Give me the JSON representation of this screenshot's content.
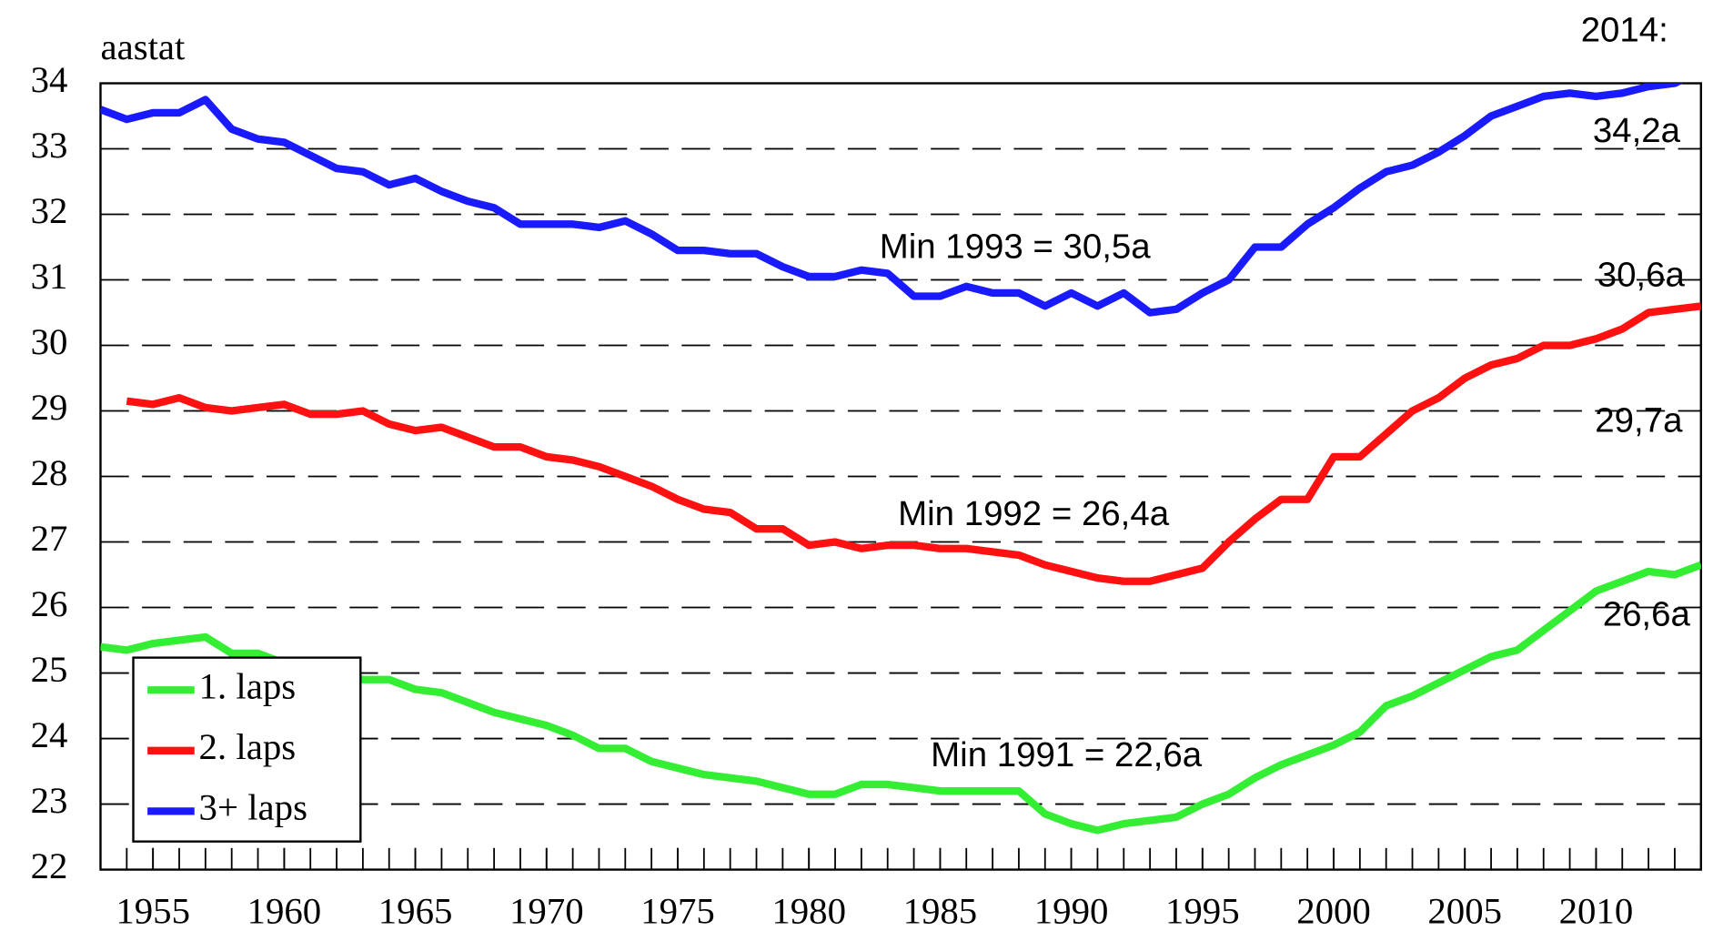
{
  "chart_data": {
    "type": "line",
    "y_label": "aastat",
    "x": [
      1953,
      1954,
      1955,
      1956,
      1957,
      1958,
      1959,
      1960,
      1961,
      1962,
      1963,
      1964,
      1965,
      1966,
      1967,
      1968,
      1969,
      1970,
      1971,
      1972,
      1973,
      1974,
      1975,
      1976,
      1977,
      1978,
      1979,
      1980,
      1981,
      1982,
      1983,
      1984,
      1985,
      1986,
      1987,
      1988,
      1989,
      1990,
      1991,
      1992,
      1993,
      1994,
      1995,
      1996,
      1997,
      1998,
      1999,
      2000,
      2001,
      2002,
      2003,
      2004,
      2005,
      2006,
      2007,
      2008,
      2009,
      2010,
      2011,
      2012,
      2013,
      2014
    ],
    "series": [
      {
        "name": "1. laps",
        "color": "#33ee33",
        "values": [
          25.4,
          25.35,
          25.45,
          25.5,
          25.55,
          25.3,
          25.3,
          25.15,
          25.1,
          25.0,
          24.9,
          24.9,
          24.75,
          24.7,
          24.55,
          24.4,
          24.3,
          24.2,
          24.05,
          23.85,
          23.85,
          23.65,
          23.55,
          23.45,
          23.4,
          23.35,
          23.25,
          23.15,
          23.15,
          23.3,
          23.3,
          23.25,
          23.2,
          23.2,
          23.2,
          23.2,
          22.85,
          22.7,
          22.6,
          22.7,
          22.75,
          22.8,
          23.0,
          23.15,
          23.4,
          23.6,
          23.75,
          23.9,
          24.1,
          24.5,
          24.65,
          24.85,
          25.05,
          25.25,
          25.35,
          25.65,
          25.95,
          26.25,
          26.4,
          26.55,
          26.5,
          26.65
        ]
      },
      {
        "name": "2. laps",
        "color": "#ff1111",
        "values": [
          null,
          29.15,
          29.1,
          29.2,
          29.05,
          29.0,
          29.05,
          29.1,
          28.95,
          28.95,
          29.0,
          28.8,
          28.7,
          28.75,
          28.6,
          28.45,
          28.45,
          28.3,
          28.25,
          28.15,
          28.0,
          27.85,
          27.65,
          27.5,
          27.45,
          27.2,
          27.2,
          26.95,
          27.0,
          26.9,
          26.95,
          26.95,
          26.9,
          26.9,
          26.85,
          26.8,
          26.65,
          26.55,
          26.45,
          26.4,
          26.4,
          26.5,
          26.6,
          27.0,
          27.35,
          27.65,
          27.65,
          28.3,
          28.3,
          28.65,
          29.0,
          29.2,
          29.5,
          29.7,
          29.8,
          30.0,
          30.0,
          30.1,
          30.25,
          30.5,
          30.55,
          30.6
        ]
      },
      {
        "name": "3+ laps",
        "color": "#1a1aff",
        "values": [
          33.6,
          33.45,
          33.55,
          33.55,
          33.75,
          33.3,
          33.15,
          33.1,
          32.9,
          32.7,
          32.65,
          32.45,
          32.55,
          32.35,
          32.2,
          32.1,
          31.85,
          31.85,
          31.85,
          31.8,
          31.9,
          31.7,
          31.45,
          31.45,
          31.4,
          31.4,
          31.2,
          31.05,
          31.05,
          31.15,
          31.1,
          30.75,
          30.75,
          30.9,
          30.8,
          30.8,
          30.6,
          30.8,
          30.6,
          30.8,
          30.5,
          30.55,
          30.8,
          31.0,
          31.5,
          31.5,
          31.85,
          32.1,
          32.4,
          32.65,
          32.75,
          32.95,
          33.2,
          33.5,
          33.65,
          33.8,
          33.85,
          33.8,
          33.85,
          33.95,
          34.0,
          34.2
        ]
      }
    ],
    "xlim": [
      1953,
      2014
    ],
    "xticks": [
      1955,
      1960,
      1965,
      1970,
      1975,
      1980,
      1985,
      1990,
      1995,
      2000,
      2005,
      2010
    ],
    "ylim": [
      22,
      34
    ],
    "yticks": [
      22,
      23,
      24,
      25,
      26,
      27,
      28,
      29,
      30,
      31,
      32,
      33,
      34
    ],
    "grid": true,
    "legend": "lower left",
    "annotations": [
      "2014:",
      "34,2a",
      "30,6a",
      "29,7a",
      "26,6a",
      "Min 1993 = 30,5a",
      "Min 1992 = 26,4a",
      "Min 1991 = 22,6a"
    ]
  }
}
